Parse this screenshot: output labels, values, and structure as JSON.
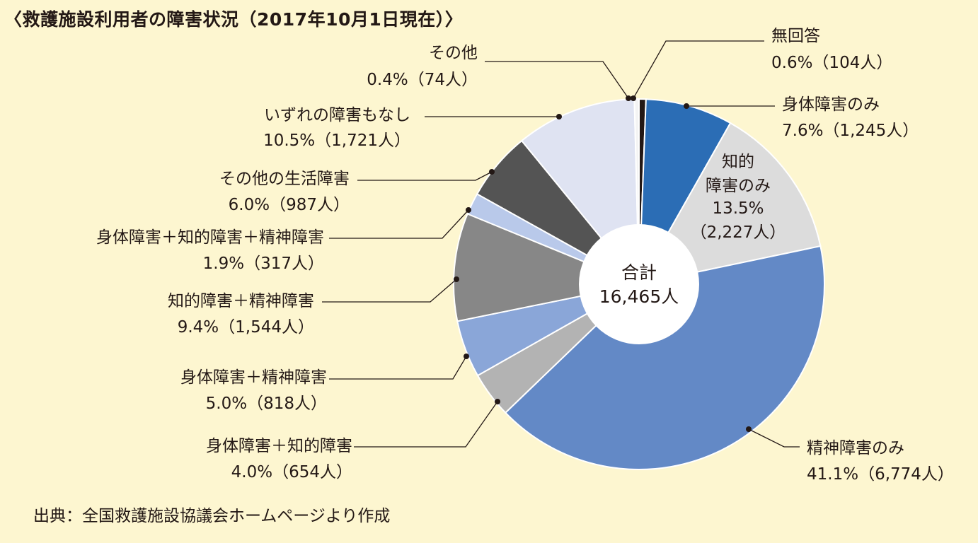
{
  "title": "〈救護施設利用者の障害状況（2017年10月1日現在）〉",
  "source": "出典：全国救護施設協議会ホームページより作成",
  "chart_data": {
    "type": "pie",
    "title": "〈救護施設利用者の障害状況（2017年10月1日現在）〉",
    "center_label": [
      "合計",
      "16,465人"
    ],
    "total": 16465,
    "slices": [
      {
        "name": "無回答",
        "percent": 0.6,
        "count": 104,
        "value_text": "0.6%（104人）",
        "color": "#231815"
      },
      {
        "name": "身体障害のみ",
        "percent": 7.6,
        "count": 1245,
        "value_text": "7.6%（1,245人）",
        "color": "#2b6db5"
      },
      {
        "name": "知的障害のみ",
        "name_lines": [
          "知的",
          "障害のみ"
        ],
        "percent": 13.5,
        "count": 2227,
        "value_text": "13.5%",
        "value_text2": "（2,227人）",
        "color": "#dcdcdc"
      },
      {
        "name": "精神障害のみ",
        "percent": 41.1,
        "count": 6774,
        "value_text": "41.1%（6,774人）",
        "color": "#6389c6"
      },
      {
        "name": "身体障害＋知的障害",
        "percent": 4.0,
        "count": 654,
        "value_text": "4.0%（654人）",
        "color": "#b3b3b3"
      },
      {
        "name": "身体障害＋精神障害",
        "percent": 5.0,
        "count": 818,
        "value_text": "5.0%（818人）",
        "color": "#8aa6d8"
      },
      {
        "name": "知的障害＋精神障害",
        "percent": 9.4,
        "count": 1544,
        "value_text": "9.4%（1,544人）",
        "color": "#878787"
      },
      {
        "name": "身体障害＋知的障害＋精神障害",
        "percent": 1.9,
        "count": 317,
        "value_text": "1.9%（317人）",
        "color": "#b9c9ea"
      },
      {
        "name": "その他の生活障害",
        "percent": 6.0,
        "count": 987,
        "value_text": "6.0%（987人）",
        "color": "#545454"
      },
      {
        "name": "いずれの障害もなし",
        "percent": 10.5,
        "count": 1721,
        "value_text": "10.5%（1,721人）",
        "color": "#dfe3f2"
      },
      {
        "name": "その他",
        "percent": 0.4,
        "count": 74,
        "value_text": "0.4%（74人）",
        "color": "#f4f4f4"
      }
    ]
  }
}
